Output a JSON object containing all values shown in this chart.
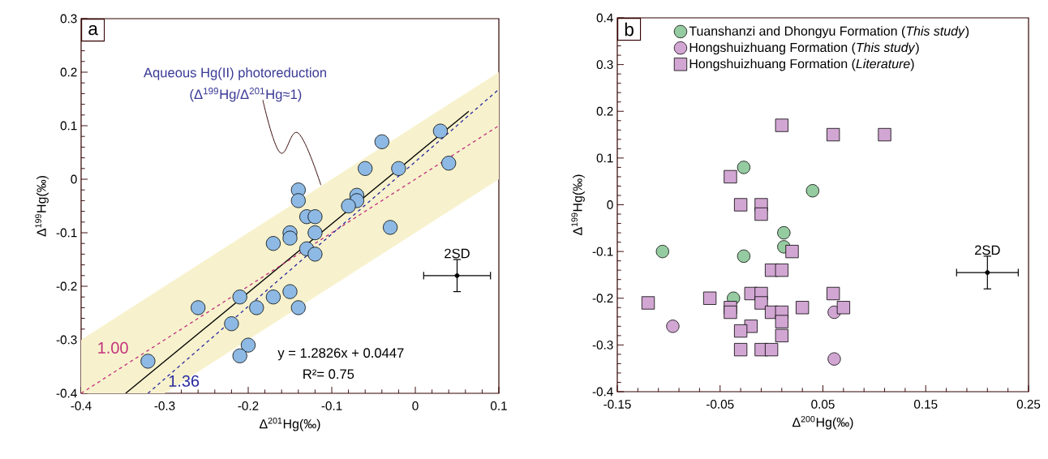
{
  "chart_data": [
    {
      "type": "scatter",
      "title": "a",
      "xlabel": "Δ$^{201}$Hg(‰)",
      "ylabel": "Δ$^{199}$Hg(‰)",
      "xlim": [
        -0.4,
        0.1
      ],
      "ylim": [
        -0.4,
        0.3
      ],
      "xticks": [
        -0.4,
        -0.3,
        -0.2,
        -0.1,
        0,
        0.1
      ],
      "yticks": [
        -0.4,
        -0.3,
        -0.2,
        -0.1,
        0,
        0.1,
        0.2,
        0.3
      ],
      "grid": false,
      "legend": false,
      "annotations": [
        "Aqueous Hg(II) photoreduction",
        {
          "text": "(Δ$^{199}$Hg/Δ$^{201}$Hg≈1)",
          "x": -0.113,
          "y": -0.011
        },
        "y = 1.2826x + 0.0447",
        "R²= 0.75"
      ],
      "series": [
        {
          "color": "#8db9e4",
          "marker": "circle",
          "x": [
            -0.04,
            0.03,
            0.04,
            -0.02,
            -0.06,
            -0.07,
            -0.07,
            -0.08,
            -0.03,
            -0.14,
            -0.14,
            -0.13,
            -0.12,
            -0.12,
            -0.15,
            -0.15,
            -0.13,
            -0.12,
            -0.17,
            -0.15,
            -0.17,
            -0.21,
            -0.19,
            -0.14,
            -0.26,
            -0.22,
            -0.2,
            -0.21,
            -0.32
          ],
          "values": [
            0.07,
            0.09,
            0.03,
            0.02,
            0.02,
            -0.03,
            -0.04,
            -0.05,
            -0.09,
            -0.02,
            -0.04,
            -0.07,
            -0.07,
            -0.1,
            -0.1,
            -0.11,
            -0.13,
            -0.14,
            -0.12,
            -0.21,
            -0.22,
            -0.22,
            -0.24,
            -0.24,
            -0.24,
            -0.27,
            -0.31,
            -0.33,
            -0.34
          ]
        },
        {
          "type": "line",
          "color": "#000000",
          "marker": "none",
          "line_style": "solid",
          "x": [
            -0.3467,
            0.064
          ],
          "values": [
            -0.4,
            0.127
          ]
        },
        {
          "type": "line",
          "name": "1.00",
          "color": "#c2307e",
          "marker": "none",
          "line_style": "dashed",
          "x": [
            -0.4,
            -0.3,
            0.1
          ],
          "values": [
            -0.4,
            -0.3,
            0.1
          ],
          "lower": [
            -0.4,
            -0.4,
            0.0
          ],
          "upper": [
            -0.3,
            -0.2,
            0.2
          ]
        },
        {
          "type": "line",
          "name": "1.36",
          "color": "#2b2ba0",
          "marker": "none",
          "line_style": "dashed",
          "x": [
            -0.32,
            0.1
          ],
          "values": [
            -0.4,
            0.168
          ]
        },
        {
          "name": "2SD",
          "color": "#000000",
          "marker": "none",
          "x": [
            0.05
          ],
          "values": [
            -0.18
          ],
          "errors": [
            0.03
          ],
          "xerrors": [
            0.04
          ]
        }
      ]
    },
    {
      "type": "scatter",
      "title": "b",
      "xlabel": "Δ$^{200}$Hg(‰)",
      "ylabel": "Δ$^{199}$Hg(‰)",
      "xlim": [
        -0.15,
        0.25
      ],
      "ylim": [
        -0.4,
        0.4
      ],
      "xticks": [
        -0.15,
        -0.05,
        0.05,
        0.15,
        0.25
      ],
      "yticks": [
        -0.4,
        -0.3,
        -0.2,
        -0.1,
        0,
        0.1,
        0.2,
        0.3,
        0.4
      ],
      "grid": false,
      "legend": "top",
      "series": [
        {
          "name": "Tuanshanzi and Dhongyu Formation (*This study*)",
          "color": "#95cba0",
          "marker": "circle",
          "x": [
            -0.027,
            0.04,
            0.012,
            0.012,
            -0.106,
            -0.027,
            -0.037
          ],
          "values": [
            0.08,
            0.03,
            -0.06,
            -0.09,
            -0.1,
            -0.11,
            -0.2
          ]
        },
        {
          "name": "Hongshuizhuang Formation (*This study*)",
          "color": "#d2a6d3",
          "marker": "circle",
          "x": [
            -0.096,
            0.061,
            0.061
          ],
          "values": [
            -0.26,
            -0.23,
            -0.33
          ]
        },
        {
          "name": "Hongshuizhuang Formation (*Literature*)",
          "color": "#d2a6d3",
          "marker": "square",
          "x": [
            0.01,
            0.06,
            0.11,
            -0.04,
            -0.03,
            -0.01,
            -0.01,
            0.02,
            0.0,
            0.01,
            -0.12,
            -0.06,
            -0.04,
            -0.04,
            -0.02,
            -0.01,
            -0.01,
            0.0,
            0.01,
            0.01,
            0.03,
            0.06,
            0.07,
            -0.02,
            -0.03,
            0.01,
            -0.03,
            -0.01,
            0.0
          ],
          "values": [
            0.17,
            0.15,
            0.15,
            0.06,
            0.0,
            0.0,
            -0.02,
            -0.1,
            -0.14,
            -0.14,
            -0.21,
            -0.2,
            -0.22,
            -0.23,
            -0.19,
            -0.19,
            -0.21,
            -0.23,
            -0.23,
            -0.25,
            -0.22,
            -0.19,
            -0.22,
            -0.26,
            -0.27,
            -0.28,
            -0.31,
            -0.31,
            -0.31
          ]
        },
        {
          "name": "2SD",
          "color": "#000000",
          "marker": "none",
          "x": [
            0.21
          ],
          "values": [
            -0.145
          ],
          "errors": [
            0.035
          ],
          "xerrors": [
            0.03
          ]
        }
      ]
    }
  ]
}
